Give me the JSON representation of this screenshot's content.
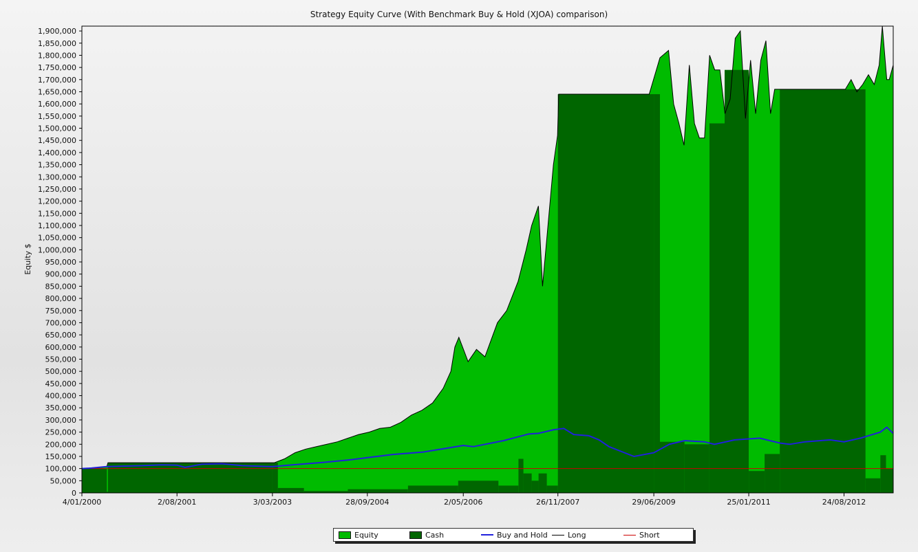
{
  "chart_data": {
    "type": "area",
    "title": "Strategy Equity Curve (With Benchmark Buy & Hold (XJOA) comparison)",
    "ylabel": "Equity $",
    "xlabel": "",
    "ylim": [
      0,
      1920000
    ],
    "y_ticks": [
      0,
      50000,
      100000,
      150000,
      200000,
      250000,
      300000,
      350000,
      400000,
      450000,
      500000,
      550000,
      600000,
      650000,
      700000,
      750000,
      800000,
      850000,
      900000,
      950000,
      1000000,
      1050000,
      1100000,
      1150000,
      1200000,
      1250000,
      1300000,
      1350000,
      1400000,
      1450000,
      1500000,
      1550000,
      1600000,
      1650000,
      1700000,
      1750000,
      1800000,
      1850000,
      1900000
    ],
    "y_tick_labels": [
      "0",
      "50,000",
      "100,000",
      "150,000",
      "200,000",
      "250,000",
      "300,000",
      "350,000",
      "400,000",
      "450,000",
      "500,000",
      "550,000",
      "600,000",
      "650,000",
      "700,000",
      "750,000",
      "800,000",
      "850,000",
      "900,000",
      "950,000",
      "1,000,000",
      "1,050,000",
      "1,100,000",
      "1,150,000",
      "1,200,000",
      "1,250,000",
      "1,300,000",
      "1,350,000",
      "1,400,000",
      "1,450,000",
      "1,500,000",
      "1,550,000",
      "1,600,000",
      "1,650,000",
      "1,700,000",
      "1,750,000",
      "1,800,000",
      "1,850,000",
      "1,900,000"
    ],
    "x_range": [
      "2000-01-04",
      "2013-06-18"
    ],
    "x_ticks": [
      "2000-01-04",
      "2001-08-02",
      "2003-03-03",
      "2004-09-28",
      "2006-05-02",
      "2007-11-26",
      "2009-06-29",
      "2011-01-25",
      "2012-08-24"
    ],
    "x_tick_labels": [
      "4/01/2000",
      "2/08/2001",
      "3/03/2003",
      "28/09/2004",
      "2/05/2006",
      "26/11/2007",
      "29/06/2009",
      "25/01/2011",
      "24/08/2012"
    ],
    "grid": false,
    "legend_position": "bottom",
    "series": [
      {
        "name": "Equity",
        "kind": "area",
        "color": "#00bb00",
        "x": [
          "2000-01-04",
          "2000-01-14",
          "2000-03-02",
          "2000-04-18",
          "2000-06-03",
          "2000-06-10",
          "2003-03-15",
          "2003-05-15",
          "2003-07-18",
          "2003-09-21",
          "2003-11-24",
          "2004-01-27",
          "2004-03-31",
          "2004-06-03",
          "2004-08-06",
          "2004-10-09",
          "2004-12-12",
          "2005-02-14",
          "2005-04-19",
          "2005-06-22",
          "2005-08-25",
          "2005-10-28",
          "2005-12-31",
          "2006-02-16",
          "2006-03-12",
          "2006-04-05",
          "2006-05-31",
          "2006-07-21",
          "2006-09-10",
          "2006-11-25",
          "2007-01-20",
          "2007-03-30",
          "2007-05-18",
          "2007-06-20",
          "2007-07-31",
          "2007-08-25",
          "2007-09-27",
          "2007-10-30",
          "2007-11-24",
          "2007-12-01",
          "2008-12-01",
          "2009-06-01",
          "2009-08-05",
          "2009-09-26",
          "2009-10-27",
          "2009-11-28",
          "2009-12-29",
          "2010-01-30",
          "2010-03-02",
          "2010-04-01",
          "2010-05-02",
          "2010-06-02",
          "2010-07-03",
          "2010-08-03",
          "2010-09-03",
          "2010-10-04",
          "2010-11-04",
          "2010-12-05",
          "2011-01-05",
          "2011-02-05",
          "2011-03-08",
          "2011-04-08",
          "2011-05-09",
          "2011-06-06",
          "2011-07-01",
          "2011-08-01",
          "2011-09-01",
          "2012-09-01",
          "2012-10-06",
          "2012-11-10",
          "2012-12-15",
          "2013-01-19",
          "2013-02-23",
          "2013-03-25",
          "2013-04-13",
          "2013-05-10",
          "2013-05-25",
          "2013-06-18"
        ],
        "values": [
          100000,
          100000,
          101000,
          104000,
          108000,
          124000,
          124000,
          140000,
          165000,
          180000,
          190000,
          200000,
          210000,
          225000,
          240000,
          250000,
          265000,
          270000,
          290000,
          320000,
          340000,
          370000,
          430000,
          500000,
          600000,
          640000,
          540000,
          590000,
          560000,
          700000,
          750000,
          870000,
          1000000,
          1100000,
          1180000,
          850000,
          1100000,
          1350000,
          1470000,
          1640000,
          1640000,
          1640000,
          1790000,
          1820000,
          1600000,
          1520000,
          1430000,
          1760000,
          1520000,
          1460000,
          1460000,
          1800000,
          1740000,
          1740000,
          1560000,
          1620000,
          1870000,
          1900000,
          1540000,
          1780000,
          1560000,
          1780000,
          1860000,
          1560000,
          1660000,
          1660000,
          1660000,
          1660000,
          1700000,
          1650000,
          1680000,
          1720000,
          1680000,
          1760000,
          1920000,
          1700000,
          1700000,
          1760000
        ]
      },
      {
        "name": "Cash",
        "kind": "bar",
        "color": "#006600",
        "x": [
          "2000-01-04",
          "2000-06-03",
          "2000-06-10",
          "2003-03-03",
          "2003-04-05",
          "2003-09-10",
          "2004-06-02",
          "2005-06-01",
          "2006-04-01",
          "2006-12-01",
          "2007-04-01",
          "2007-05-01",
          "2007-06-20",
          "2007-08-01",
          "2007-09-20",
          "2007-11-26",
          "2009-06-29",
          "2009-08-05",
          "2010-01-01",
          "2010-06-01",
          "2010-09-01",
          "2011-01-25",
          "2011-05-01",
          "2011-08-01",
          "2012-09-01",
          "2013-01-01",
          "2013-04-01",
          "2013-05-05"
        ],
        "values": [
          100000,
          5000,
          124000,
          124000,
          20000,
          8000,
          15000,
          30000,
          50000,
          30000,
          140000,
          80000,
          50000,
          80000,
          30000,
          1640000,
          1640000,
          210000,
          200000,
          1520000,
          1740000,
          90000,
          160000,
          1660000,
          1660000,
          60000,
          155000,
          100000
        ]
      },
      {
        "name": "Buy and Hold",
        "kind": "line",
        "color": "#2020dd",
        "x": [
          "2000-01-04",
          "2000-03-01",
          "2000-06-01",
          "2000-09-01",
          "2001-01-01",
          "2001-05-01",
          "2001-08-02",
          "2001-09-20",
          "2002-01-01",
          "2002-05-01",
          "2002-09-01",
          "2003-03-03",
          "2003-07-01",
          "2004-01-01",
          "2004-06-01",
          "2004-09-28",
          "2005-03-01",
          "2005-09-01",
          "2006-02-01",
          "2006-05-02",
          "2006-07-01",
          "2007-01-01",
          "2007-06-01",
          "2007-08-01",
          "2007-11-01",
          "2008-01-01",
          "2008-03-01",
          "2008-06-01",
          "2008-08-01",
          "2008-10-01",
          "2009-03-01",
          "2009-06-29",
          "2009-10-01",
          "2010-01-01",
          "2010-05-01",
          "2010-07-01",
          "2010-11-01",
          "2011-01-25",
          "2011-04-01",
          "2011-08-01",
          "2011-10-01",
          "2012-01-01",
          "2012-06-01",
          "2012-08-24",
          "2012-12-01",
          "2013-04-01",
          "2013-05-10",
          "2013-06-18"
        ],
        "values": [
          100000,
          102000,
          108000,
          110000,
          112000,
          115000,
          114000,
          105000,
          118000,
          120000,
          112000,
          108000,
          115000,
          125000,
          135000,
          145000,
          158000,
          168000,
          185000,
          195000,
          190000,
          215000,
          242000,
          245000,
          260000,
          265000,
          240000,
          235000,
          218000,
          190000,
          150000,
          165000,
          200000,
          215000,
          210000,
          200000,
          218000,
          222000,
          225000,
          205000,
          200000,
          210000,
          218000,
          210000,
          225000,
          250000,
          270000,
          245000
        ]
      },
      {
        "name": "Long",
        "kind": "line",
        "color": "#000000"
      },
      {
        "name": "Short",
        "kind": "line",
        "color": "#cc0000",
        "x": [
          "2000-01-04",
          "2013-06-18"
        ],
        "values": [
          100000,
          100000
        ]
      }
    ]
  }
}
